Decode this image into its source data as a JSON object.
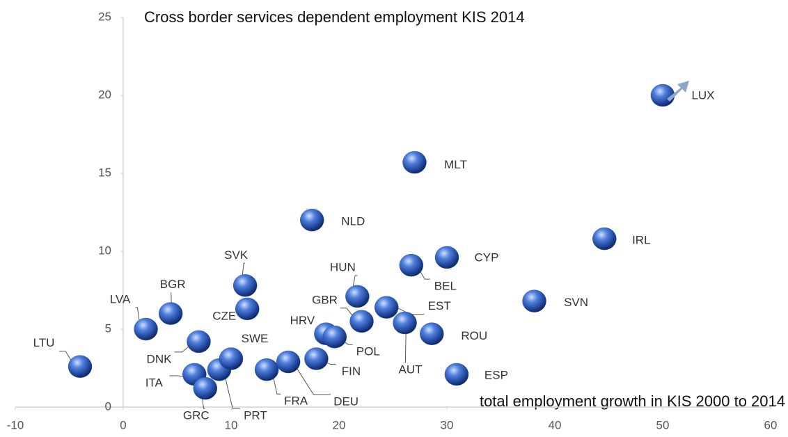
{
  "chart_data": {
    "type": "scatter",
    "title": "Cross border services dependent employment KIS 2014",
    "x_label": "total employment growth in KIS 2000 to 2014",
    "color": "#2a58b8",
    "labels": [
      "LTU",
      "LVA",
      "BGR",
      "SVK",
      "CZE",
      "DNK",
      "ITA",
      "GRC",
      "PRT",
      "SWE",
      "FRA",
      "DEU",
      "FIN",
      "HRV",
      "POL",
      "NLD",
      "HUN",
      "GBR",
      "EST",
      "AUT",
      "BEL",
      "MLT",
      "CYP",
      "ROU",
      "ESP",
      "SVN",
      "IRL",
      "LUX"
    ],
    "x": [
      -4.0,
      2.1,
      4.4,
      11.3,
      11.5,
      7.0,
      6.6,
      7.6,
      8.9,
      10.0,
      13.3,
      15.3,
      17.9,
      18.8,
      19.6,
      17.5,
      21.7,
      22.1,
      24.4,
      26.1,
      26.7,
      27.0,
      30.0,
      28.6,
      30.9,
      38.1,
      44.6,
      50.0
    ],
    "values": [
      2.6,
      5.0,
      6.0,
      7.8,
      6.3,
      4.2,
      2.1,
      1.2,
      2.4,
      3.1,
      2.4,
      2.9,
      3.1,
      4.7,
      4.5,
      12.0,
      7.1,
      5.5,
      6.4,
      5.4,
      9.1,
      15.7,
      9.6,
      4.7,
      2.1,
      6.8,
      10.8,
      20.0
    ],
    "xlim": [
      -10,
      60
    ],
    "xticks": [
      -10,
      0,
      10,
      20,
      30,
      40,
      50,
      60
    ],
    "ylim": [
      0,
      25
    ],
    "yticks": [
      0,
      5,
      10,
      15,
      20,
      25
    ]
  }
}
